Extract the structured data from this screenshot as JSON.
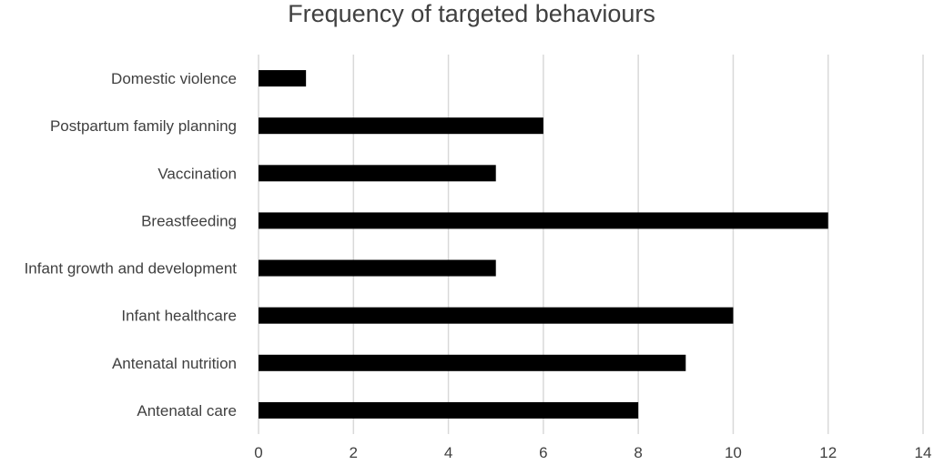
{
  "chart_data": {
    "type": "bar",
    "orientation": "horizontal",
    "title": "Frequency of targeted behaviours",
    "xlabel": "",
    "ylabel": "",
    "categories": [
      "Domestic violence",
      "Postpartum family planning",
      "Vaccination",
      "Breastfeeding",
      "Infant growth and development",
      "Infant healthcare",
      "Antenatal nutrition",
      "Antenatal care"
    ],
    "values": [
      1,
      6,
      5,
      12,
      5,
      10,
      9,
      8
    ],
    "xlim": [
      0,
      14
    ],
    "xticks": [
      "0",
      "2",
      "4",
      "6",
      "8",
      "10",
      "12",
      "14"
    ],
    "grid": "vertical",
    "legend": "none",
    "bar_color": "#000000",
    "grid_color": "#d9d9d9",
    "text_color": "#404040"
  }
}
